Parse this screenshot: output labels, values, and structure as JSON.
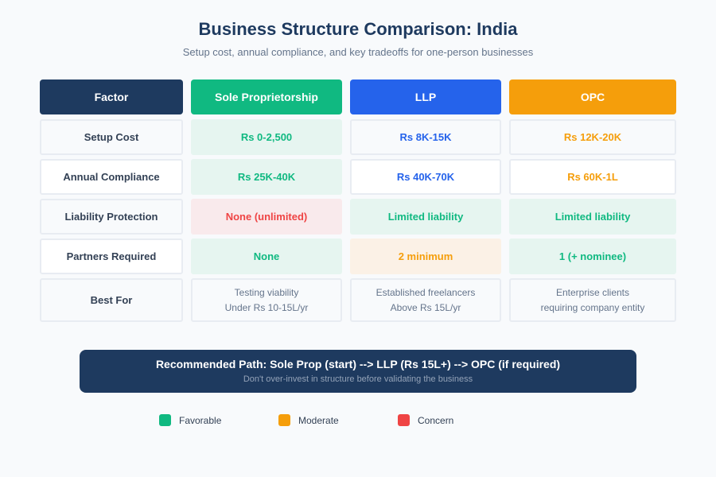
{
  "title": "Business Structure Comparison: India",
  "subtitle": "Setup cost, annual compliance, and key tradeoffs for one-person businesses",
  "colors": {
    "navy": "#1e3a5f",
    "green": "#10b981",
    "blue": "#2563eb",
    "orange": "#f59e0b",
    "red": "#ef4444"
  },
  "headers": [
    "Factor",
    "Sole Proprietorship",
    "LLP",
    "OPC"
  ],
  "rows": [
    {
      "factor": "Setup Cost",
      "sole": "Rs 0-2,500",
      "llp": "Rs 8K-15K",
      "opc": "Rs 12K-20K"
    },
    {
      "factor": "Annual Compliance",
      "sole": "Rs 25K-40K",
      "llp": "Rs 40K-70K",
      "opc": "Rs 60K-1L"
    },
    {
      "factor": "Liability Protection",
      "sole": "None (unlimited)",
      "llp": "Limited liability",
      "opc": "Limited liability"
    },
    {
      "factor": "Partners Required",
      "sole": "None",
      "llp": "2 minimum",
      "opc": "1 (+ nominee)"
    },
    {
      "factor": "Best For",
      "sole": [
        "Testing viability",
        "Under Rs 10-15L/yr"
      ],
      "llp": [
        "Established freelancers",
        "Above Rs 15L/yr"
      ],
      "opc": [
        "Enterprise clients",
        "requiring company entity"
      ]
    }
  ],
  "banner": {
    "main": "Recommended Path: Sole Prop (start) --> LLP (Rs 15L+) --> OPC (if required)",
    "sub": "Don't over-invest in structure before validating the business"
  },
  "legend": [
    {
      "label": "Favorable",
      "color": "#10b981"
    },
    {
      "label": "Moderate",
      "color": "#f59e0b"
    },
    {
      "label": "Concern",
      "color": "#ef4444"
    }
  ]
}
